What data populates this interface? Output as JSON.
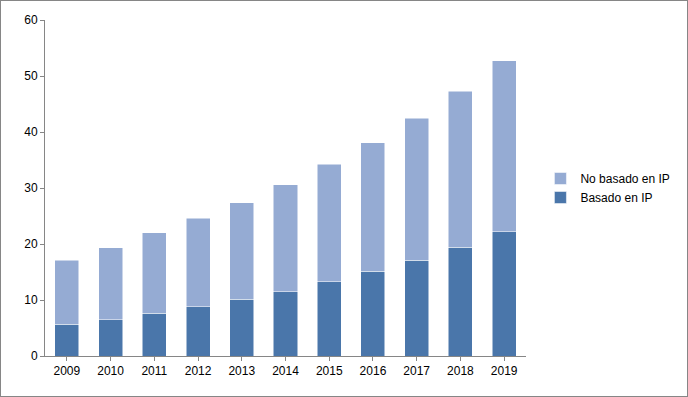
{
  "chart_data": {
    "type": "bar",
    "stacked": true,
    "grid": false,
    "legend": "right",
    "categories": [
      "2009",
      "2010",
      "2011",
      "2012",
      "2013",
      "2014",
      "2015",
      "2016",
      "2017",
      "2018",
      "2019"
    ],
    "series": [
      {
        "name": "Basado en IP",
        "color": "#4a76aa",
        "values": [
          5.7,
          6.5,
          7.6,
          8.8,
          10.1,
          11.5,
          13.3,
          15.1,
          17.1,
          19.4,
          22.2
        ]
      },
      {
        "name": "No basado en IP",
        "color": "#95abd3",
        "values": [
          11.4,
          12.8,
          14.4,
          15.8,
          17.3,
          19.1,
          20.9,
          23.0,
          25.4,
          27.9,
          30.5
        ]
      }
    ],
    "ylim": [
      0,
      60
    ],
    "yticks": [
      0,
      10,
      20,
      30,
      40,
      50,
      60
    ]
  }
}
